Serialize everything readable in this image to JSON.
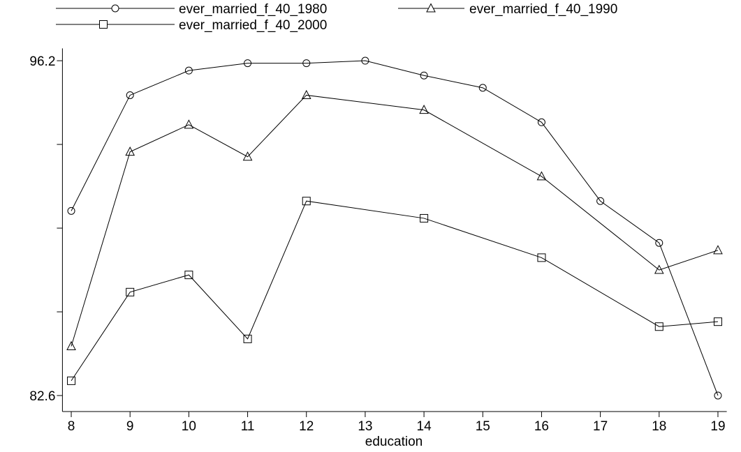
{
  "chart_data": {
    "type": "line",
    "x_label": "education",
    "xlim": [
      7.85,
      19.15
    ],
    "xticks": [
      8,
      9,
      10,
      11,
      12,
      13,
      14,
      15,
      16,
      17,
      18,
      19
    ],
    "ylim": [
      81.95,
      96.7
    ],
    "yticks": [
      82.6,
      96.2
    ],
    "yminor_ticks": [
      86,
      89.4,
      92.8
    ],
    "color": "#000000",
    "series": [
      {
        "name": "ever_married_f_40_1980",
        "marker": "circle",
        "x": [
          8,
          9,
          10,
          11,
          12,
          13,
          14,
          15,
          16,
          17,
          18,
          19
        ],
        "values": [
          90.1,
          94.8,
          95.8,
          96.1,
          96.1,
          96.2,
          95.6,
          95.1,
          93.7,
          90.5,
          88.8,
          82.6
        ]
      },
      {
        "name": "ever_married_f_40_1990",
        "marker": "triangle",
        "x": [
          8,
          9,
          10,
          11,
          12,
          14,
          16,
          18,
          19
        ],
        "values": [
          84.6,
          92.5,
          93.6,
          92.3,
          94.8,
          94.2,
          91.5,
          87.7,
          88.5
        ]
      },
      {
        "name": "ever_married_f_40_2000",
        "marker": "square",
        "x": [
          8,
          9,
          10,
          11,
          12,
          14,
          16,
          18,
          19
        ],
        "values": [
          83.2,
          86.8,
          87.5,
          84.9,
          90.5,
          89.8,
          88.2,
          85.4,
          85.6
        ]
      }
    ]
  }
}
